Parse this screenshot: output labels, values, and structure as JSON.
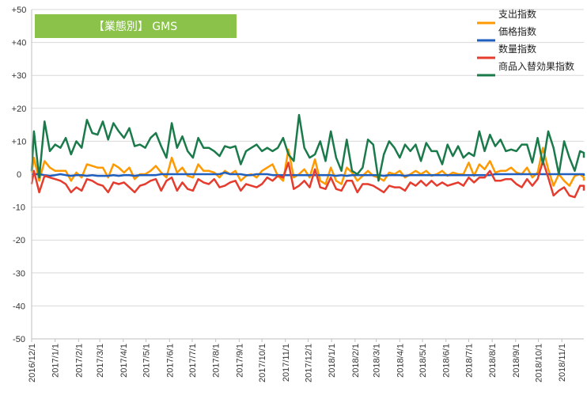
{
  "chart_data": {
    "type": "line",
    "title": "【業態別】 GMS",
    "title_bg": "#8bc34a",
    "xlabel": "",
    "ylabel": "",
    "ylim": [
      -50,
      50
    ],
    "y_ticks": [
      "+50",
      "+40",
      "+30",
      "+20",
      "+10",
      "0",
      "-10",
      "-20",
      "-30",
      "-40",
      "-50"
    ],
    "y_tick_values": [
      50,
      40,
      30,
      20,
      10,
      0,
      -10,
      -20,
      -30,
      -40,
      -50
    ],
    "x_tick_labels": [
      "2016/12/1",
      "2017/1/1",
      "2017/2/1",
      "2017/3/1",
      "2017/4/1",
      "2017/5/1",
      "2017/6/1",
      "2017/7/1",
      "2017/8/1",
      "2017/9/1",
      "2017/10/1",
      "2017/11/1",
      "2017/12/1",
      "2018/1/1",
      "2018/2/1",
      "2018/3/1",
      "2018/4/1",
      "2018/5/1",
      "2018/6/1",
      "2018/7/1",
      "2018/8/1",
      "2018/9/1",
      "2018/10/1",
      "2018/11/1"
    ],
    "x_start": "2016-12-01",
    "x_end": "2018-11-30",
    "x_weekly_start": "2016-11-27",
    "grid": true,
    "legend_position": "top-right",
    "series": [
      {
        "name": "支出指数",
        "color": "#ff9900",
        "values": [
          0.5,
          5.0,
          -2.0,
          4.0,
          2.0,
          1.0,
          1.0,
          1.0,
          -2.0,
          0.5,
          -1.0,
          3.0,
          2.5,
          2.0,
          2.0,
          -1.0,
          3.0,
          2.0,
          0.5,
          2.0,
          -1.5,
          0.0,
          0.0,
          1.0,
          2.5,
          0.5,
          -1.0,
          5.0,
          0.5,
          2.0,
          -0.5,
          -1.0,
          3.0,
          1.0,
          1.0,
          0.5,
          -1.0,
          1.0,
          0.0,
          1.0,
          -2.0,
          -0.5,
          0.0,
          -1.0,
          1.0,
          2.0,
          3.0,
          -0.5,
          -2.0,
          7.5,
          -1.0,
          0.0,
          1.5,
          -1.0,
          4.5,
          -2.0,
          -3.0,
          2.0,
          -2.0,
          -3.0,
          2.0,
          0.5,
          -2.0,
          -0.5,
          1.0,
          -0.5,
          -1.0,
          -2.0,
          0.5,
          0.0,
          1.0,
          -1.0,
          0.0,
          1.0,
          0.0,
          1.0,
          -0.5,
          0.0,
          1.0,
          -0.5,
          0.5,
          0.0,
          0.0,
          3.5,
          -0.5,
          3.0,
          1.5,
          4.0,
          0.5,
          1.0,
          1.0,
          2.0,
          0.5,
          0.0,
          2.0,
          -1.0,
          0.5,
          8.0,
          1.5,
          -3.5,
          0.0,
          -2.0,
          -3.5,
          -0.5,
          0.0,
          -1.0,
          -2.0
        ]
      },
      {
        "name": "価格指数",
        "color": "#1f5fbf",
        "values": [
          0.0,
          0.0,
          0.0,
          -0.3,
          -0.5,
          -0.3,
          0.0,
          -0.3,
          -0.5,
          -0.3,
          -0.3,
          -0.5,
          -0.3,
          -0.5,
          -0.5,
          -0.5,
          -0.3,
          -0.5,
          -0.3,
          -0.3,
          -0.5,
          -0.3,
          -0.3,
          -0.3,
          -0.3,
          0.0,
          0.0,
          0.0,
          0.0,
          0.0,
          0.0,
          0.0,
          0.0,
          0.0,
          0.0,
          0.0,
          0.0,
          0.5,
          0.0,
          0.0,
          0.0,
          -0.3,
          -0.3,
          0.0,
          0.0,
          0.0,
          -0.3,
          -0.3,
          -0.3,
          -0.3,
          -0.3,
          -0.3,
          -0.3,
          -0.3,
          -0.3,
          -0.3,
          -0.3,
          -0.3,
          -0.5,
          -0.3,
          -0.5,
          -0.3,
          -0.3,
          -0.3,
          -0.3,
          -0.3,
          -0.3,
          -0.5,
          -0.3,
          -0.3,
          -0.3,
          -0.5,
          -0.3,
          -0.3,
          -0.3,
          -0.3,
          -0.3,
          -0.3,
          -0.3,
          -0.3,
          -0.3,
          -0.3,
          -0.3,
          -0.3,
          -0.3,
          -0.3,
          -0.3,
          -0.3,
          0.0,
          0.0,
          0.0,
          0.0,
          0.0,
          0.0,
          0.0,
          0.0,
          0.0,
          0.0,
          0.0,
          0.0,
          0.0,
          0.0,
          0.0,
          0.0,
          0.0,
          0.0,
          -0.5
        ]
      },
      {
        "name": "数量指数",
        "color": "#e53c2e",
        "values": [
          -3.0,
          1.0,
          -5.5,
          -0.5,
          -1.0,
          -1.5,
          -2.0,
          -3.0,
          -5.5,
          -4.0,
          -5.0,
          -1.5,
          -2.0,
          -3.0,
          -3.5,
          -5.5,
          -2.5,
          -3.0,
          -2.5,
          -4.0,
          -5.5,
          -3.5,
          -3.0,
          -2.0,
          -1.5,
          -5.0,
          -2.0,
          -1.0,
          -5.0,
          -2.5,
          -4.5,
          -5.0,
          -1.5,
          -2.5,
          -3.0,
          -1.5,
          -4.0,
          -3.5,
          -2.5,
          -2.0,
          -5.0,
          -3.0,
          -3.5,
          -4.0,
          -3.0,
          -1.0,
          -2.0,
          -0.5,
          -1.0,
          3.5,
          -4.5,
          -3.5,
          -2.0,
          -4.0,
          1.5,
          -4.0,
          -4.5,
          -1.0,
          -4.5,
          -5.0,
          -2.0,
          -2.0,
          -5.5,
          -3.0,
          -3.0,
          -3.5,
          -4.5,
          -5.5,
          -3.5,
          -4.0,
          -4.0,
          -5.0,
          -2.5,
          -3.5,
          -2.0,
          -3.5,
          -2.0,
          -3.5,
          -2.5,
          -3.5,
          -3.0,
          -2.5,
          -3.5,
          -1.0,
          -2.5,
          -1.0,
          -1.0,
          1.0,
          -2.0,
          -2.0,
          -1.5,
          -1.5,
          -3.0,
          -4.0,
          -1.5,
          -3.5,
          -1.5,
          4.0,
          -1.0,
          -6.5,
          -5.0,
          -4.0,
          -6.5,
          -7.0,
          -3.5,
          -3.5,
          -5.0
        ]
      },
      {
        "name": "商品入替効果指数",
        "color": "#1a7a4a",
        "values": [
          1.0,
          13.0,
          -1.0,
          16.0,
          7.0,
          9.0,
          8.0,
          11.0,
          6.0,
          10.0,
          8.0,
          16.5,
          12.5,
          12.0,
          16.0,
          10.5,
          15.5,
          13.0,
          11.0,
          14.0,
          8.5,
          9.0,
          8.0,
          11.0,
          12.5,
          8.5,
          5.0,
          15.5,
          8.0,
          11.5,
          7.0,
          5.0,
          11.0,
          8.0,
          8.0,
          7.0,
          5.5,
          8.5,
          8.0,
          8.5,
          3.0,
          7.0,
          8.0,
          9.0,
          7.0,
          8.0,
          7.0,
          8.0,
          11.0,
          6.0,
          4.0,
          18.0,
          8.0,
          5.0,
          6.0,
          10.0,
          4.0,
          13.0,
          5.0,
          1.0,
          10.5,
          1.0,
          0.0,
          2.0,
          10.5,
          9.0,
          -2.0,
          6.0,
          10.0,
          8.0,
          5.0,
          9.0,
          7.0,
          9.0,
          4.0,
          9.5,
          7.0,
          7.0,
          3.0,
          9.0,
          5.5,
          8.5,
          5.0,
          6.5,
          5.5,
          13.0,
          7.0,
          12.0,
          8.5,
          10.5,
          7.0,
          7.5,
          7.0,
          9.0,
          9.0,
          3.5,
          11.0,
          3.0,
          13.0,
          8.0,
          0.0,
          10.0,
          5.0,
          1.0,
          7.0,
          6.5,
          5.0
        ]
      }
    ]
  }
}
